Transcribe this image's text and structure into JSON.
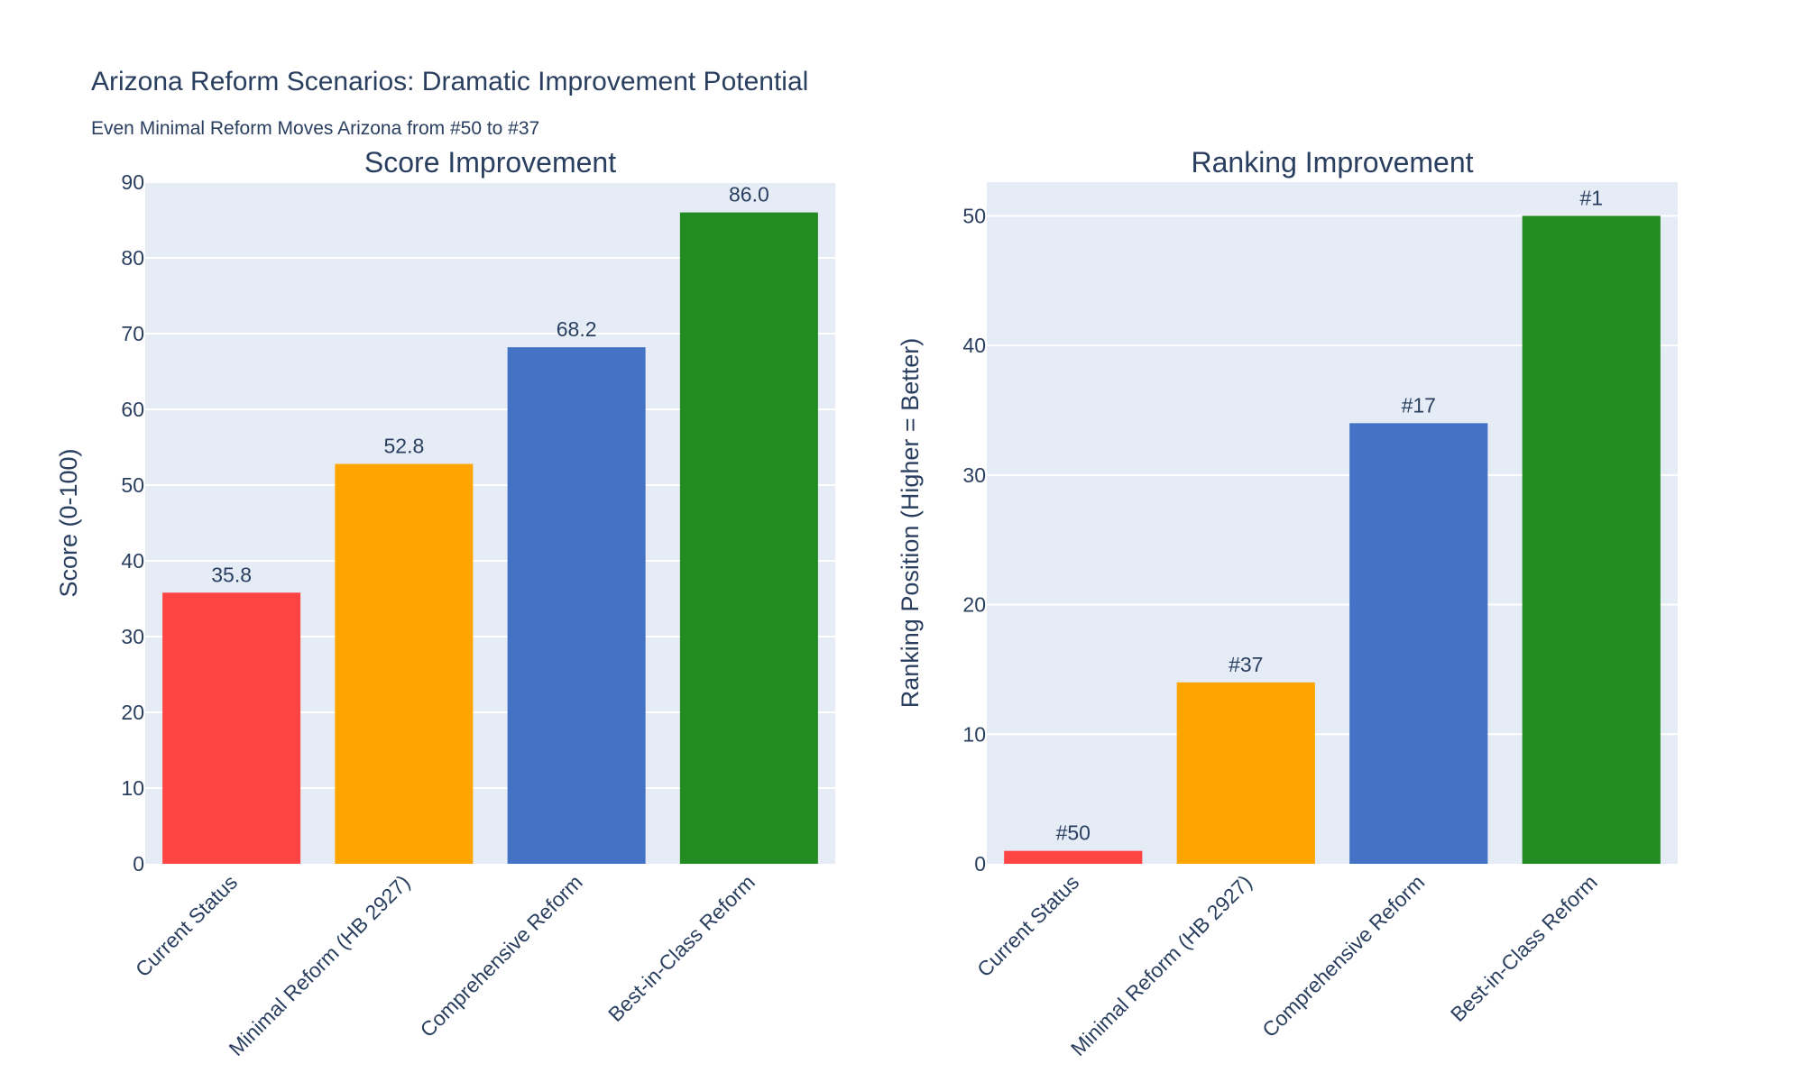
{
  "title": "Arizona Reform Scenarios: Dramatic Improvement Potential",
  "subtitle": "Even Minimal Reform Moves Arizona from #50 to #37",
  "chart_data": [
    {
      "type": "bar",
      "title": "Score Improvement",
      "xlabel": "",
      "ylabel": "Score (0-100)",
      "categories": [
        "Current Status",
        "Minimal Reform (HB 2927)",
        "Comprehensive Reform",
        "Best-in-Class Reform"
      ],
      "values": [
        35.8,
        52.8,
        68.2,
        86.0
      ],
      "labels": [
        "35.8",
        "52.8",
        "68.2",
        "86.0"
      ],
      "colors": [
        "#ff4444",
        "#ffa500",
        "#4472c4",
        "#228b22"
      ],
      "ylim": [
        0,
        90
      ],
      "yticks": [
        0,
        10,
        20,
        30,
        40,
        50,
        60,
        70,
        80,
        90
      ],
      "grid": true
    },
    {
      "type": "bar",
      "title": "Ranking Improvement",
      "xlabel": "",
      "ylabel": "Ranking Position (Higher = Better)",
      "categories": [
        "Current Status",
        "Minimal Reform (HB 2927)",
        "Comprehensive Reform",
        "Best-in-Class Reform"
      ],
      "values": [
        1,
        14,
        34,
        50
      ],
      "labels": [
        "#50",
        "#37",
        "#17",
        "#1"
      ],
      "colors": [
        "#ff4444",
        "#ffa500",
        "#4472c4",
        "#228b22"
      ],
      "ylim": [
        0,
        52.6
      ],
      "yticks": [
        0,
        10,
        20,
        30,
        40,
        50
      ],
      "grid": true
    }
  ]
}
